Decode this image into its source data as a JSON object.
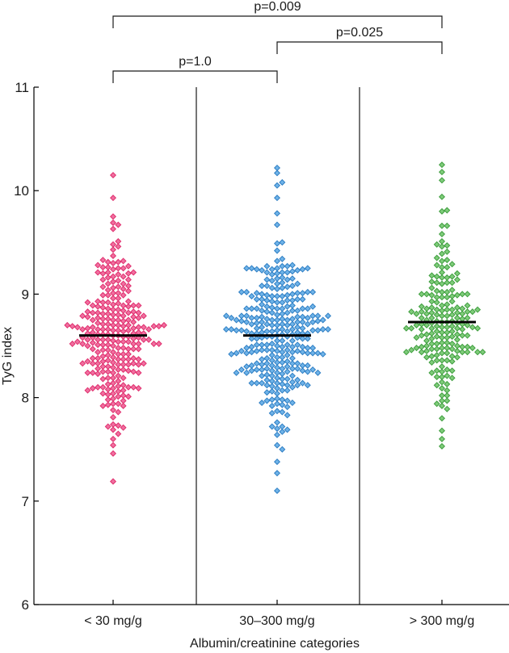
{
  "chart_data": {
    "type": "scatter",
    "subtype": "beeswarm",
    "title": "",
    "xlabel": "Albumin/creatinine categories",
    "ylabel": "TyG index",
    "ylim": [
      6,
      11
    ],
    "yticks": [
      6,
      7,
      8,
      9,
      10,
      11
    ],
    "grid": false,
    "categories": [
      "< 30 mg/g",
      "30–300 mg/g",
      "> 300 mg/g"
    ],
    "series": [
      {
        "category": "< 30 mg/g",
        "color": "#e0306e",
        "fill": "#f06fa0",
        "median": 8.6,
        "point_count": 260,
        "range": [
          7.19,
          10.15
        ],
        "extreme_points": [
          10.15,
          9.93,
          9.75,
          9.67,
          7.65,
          7.6,
          7.19
        ]
      },
      {
        "category": "30–300 mg/g",
        "color": "#2f7fc4",
        "fill": "#6fb3e8",
        "median": 8.6,
        "point_count": 300,
        "range": [
          7.1,
          10.22
        ],
        "extreme_points": [
          10.22,
          10.17,
          10.08,
          10.05,
          9.93,
          7.72,
          7.69,
          7.38,
          7.27,
          7.1
        ]
      },
      {
        "category": "> 300 mg/g",
        "color": "#3f9e3f",
        "fill": "#7fcc7a",
        "median": 8.73,
        "point_count": 190,
        "range": [
          7.53,
          10.25
        ],
        "extreme_points": [
          10.25,
          10.18,
          10.1,
          9.94,
          9.8,
          7.68,
          7.6,
          7.53
        ]
      }
    ],
    "annotations": [
      {
        "from": "< 30 mg/g",
        "to": "30–300 mg/g",
        "label": "p=1.0"
      },
      {
        "from": "30–300 mg/g",
        "to": "> 300 mg/g",
        "label": "p=0.025"
      },
      {
        "from": "< 30 mg/g",
        "to": "> 300 mg/g",
        "label": "p=0.009"
      }
    ]
  }
}
